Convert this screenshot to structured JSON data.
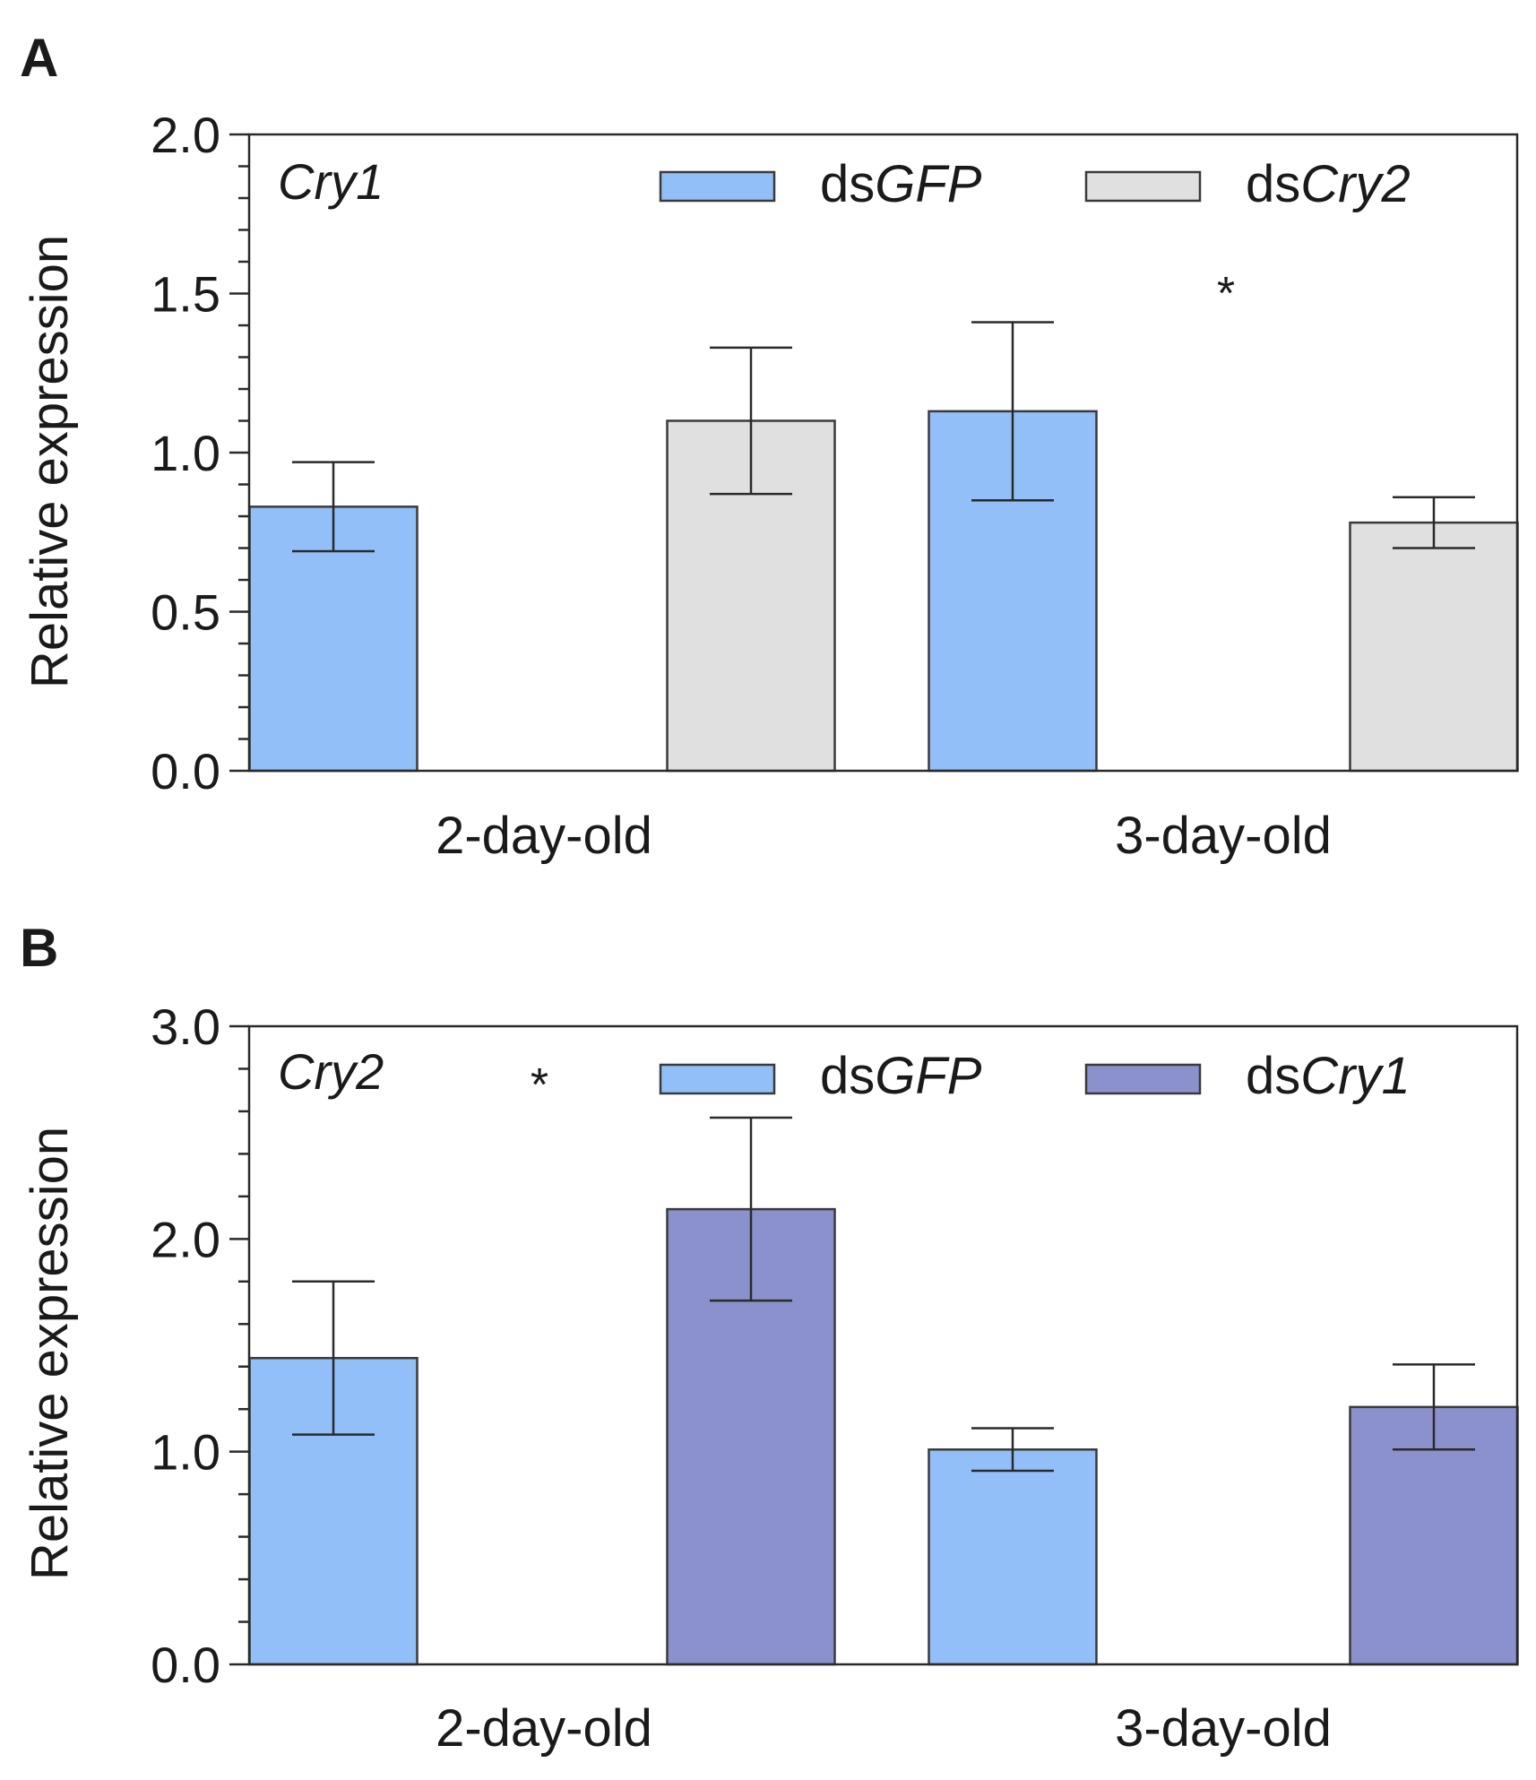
{
  "chart_data": [
    {
      "panel": "A",
      "type": "bar",
      "gene": "Cry1",
      "ylabel": "Relative expression",
      "ylim": [
        0,
        2.0
      ],
      "yticks": [
        "0.0",
        "0.5",
        "1.0",
        "1.5",
        "2.0"
      ],
      "ytick_values": [
        0,
        0.5,
        1.0,
        1.5,
        2.0
      ],
      "minor_step": 0.1,
      "categories": [
        "2-day-old",
        "3-day-old"
      ],
      "series": [
        {
          "prefix": "ds",
          "name": "GFP",
          "color": "#92bff8",
          "values": [
            0.83,
            1.13
          ],
          "errors": [
            0.14,
            0.28
          ]
        },
        {
          "prefix": "ds",
          "name": "Cry2",
          "color": "#e0e0e0",
          "values": [
            1.1,
            0.78
          ],
          "errors": [
            0.23,
            0.08
          ]
        }
      ],
      "significance": [
        {
          "category": 1,
          "label": "*"
        }
      ],
      "legend_position": "top-right"
    },
    {
      "panel": "B",
      "type": "bar",
      "gene": "Cry2",
      "ylabel": "Relative expression",
      "ylim": [
        0,
        3.0
      ],
      "yticks": [
        "0.0",
        "1.0",
        "2.0",
        "3.0"
      ],
      "ytick_values": [
        0,
        1.0,
        2.0,
        3.0
      ],
      "minor_step": 0.2,
      "categories": [
        "2-day-old",
        "3-day-old"
      ],
      "series": [
        {
          "prefix": "ds",
          "name": "GFP",
          "color": "#92bff8",
          "values": [
            1.44,
            1.01
          ],
          "errors": [
            0.36,
            0.1
          ]
        },
        {
          "prefix": "ds",
          "name": "Cry1",
          "color": "#8b91cc",
          "values": [
            2.14,
            1.21
          ],
          "errors": [
            0.43,
            0.2
          ]
        }
      ],
      "significance": [
        {
          "category": 0,
          "label": "*"
        }
      ],
      "legend_position": "top-right"
    }
  ]
}
